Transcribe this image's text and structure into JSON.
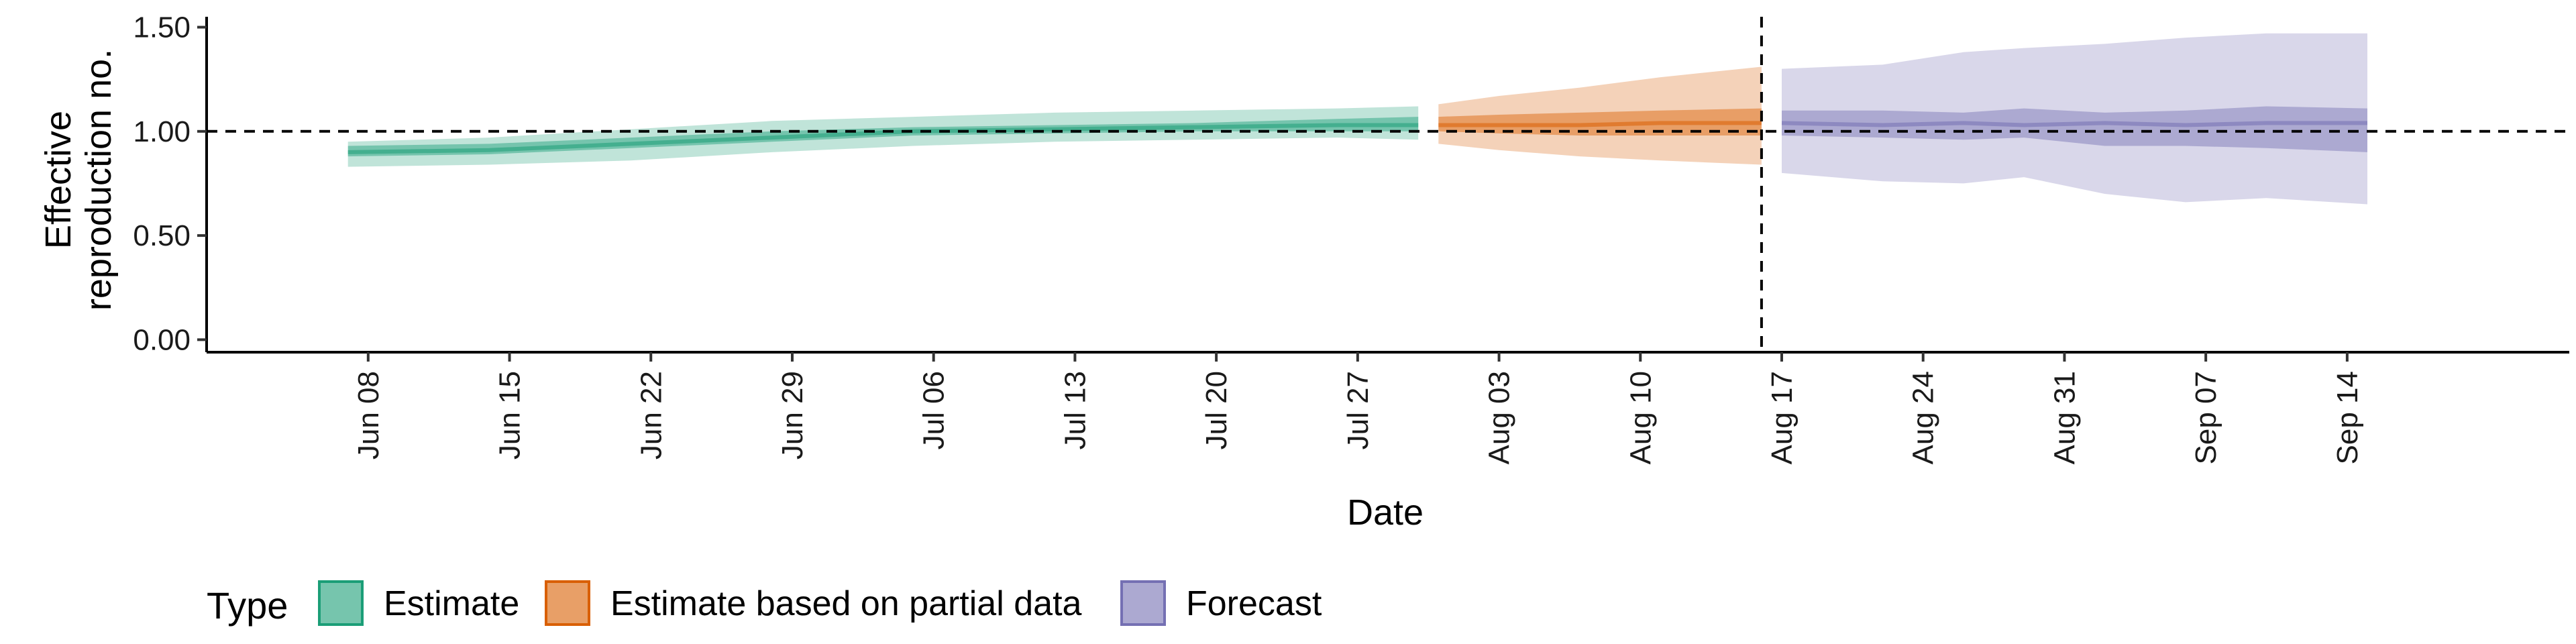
{
  "chart_data": {
    "type": "area",
    "xlabel": "Date",
    "ylabel_lines": [
      "Effective",
      "reproduction no."
    ],
    "x_tick_labels": [
      "Jun 08",
      "Jun 15",
      "Jun 22",
      "Jun 29",
      "Jul 06",
      "Jul 13",
      "Jul 20",
      "Jul 27",
      "Aug 03",
      "Aug 10",
      "Aug 17",
      "Aug 24",
      "Aug 31",
      "Sep 07",
      "Sep 14"
    ],
    "x_ticks": [
      "2020-06-08",
      "2020-06-15",
      "2020-06-22",
      "2020-06-29",
      "2020-07-06",
      "2020-07-13",
      "2020-07-20",
      "2020-07-27",
      "2020-08-03",
      "2020-08-10",
      "2020-08-17",
      "2020-08-24",
      "2020-08-31",
      "2020-09-07",
      "2020-09-14"
    ],
    "x_range": [
      "2020-05-31",
      "2020-09-25"
    ],
    "y_ticks": [
      0.0,
      0.5,
      1.0,
      1.5
    ],
    "y_tick_labels": [
      "0.00",
      "0.50",
      "1.00",
      "1.50"
    ],
    "ylim": [
      -0.06,
      1.55
    ],
    "reference_hline": 1.0,
    "forecast_vline": "2020-08-16",
    "grid": false,
    "legend": {
      "title": "Type",
      "position": "bottom-left",
      "entries": [
        "Estimate",
        "Estimate based on partial data",
        "Forecast"
      ]
    },
    "colors": {
      "Estimate": "#1b9e77",
      "Estimate based on partial data": "#d95f02",
      "Forecast": "#7570b3"
    },
    "series": [
      {
        "name": "Estimate",
        "x": [
          "2020-06-07",
          "2020-06-14",
          "2020-06-21",
          "2020-06-28",
          "2020-07-05",
          "2020-07-12",
          "2020-07-19",
          "2020-07-26",
          "2020-07-30"
        ],
        "median": [
          0.9,
          0.91,
          0.94,
          0.97,
          1.0,
          1.01,
          1.02,
          1.03,
          1.03
        ],
        "lower50": [
          0.88,
          0.89,
          0.92,
          0.95,
          0.98,
          0.99,
          1.0,
          1.0,
          1.0
        ],
        "upper50": [
          0.93,
          0.94,
          0.97,
          1.0,
          1.02,
          1.03,
          1.04,
          1.06,
          1.07
        ],
        "lower90": [
          0.83,
          0.84,
          0.86,
          0.9,
          0.93,
          0.95,
          0.96,
          0.97,
          0.96
        ],
        "upper90": [
          0.95,
          0.97,
          1.01,
          1.05,
          1.07,
          1.09,
          1.1,
          1.11,
          1.12
        ]
      },
      {
        "name": "Estimate based on partial data",
        "x": [
          "2020-07-31",
          "2020-08-03",
          "2020-08-07",
          "2020-08-11",
          "2020-08-16"
        ],
        "median": [
          1.03,
          1.03,
          1.03,
          1.04,
          1.04
        ],
        "lower50": [
          1.0,
          0.99,
          0.98,
          0.98,
          0.98
        ],
        "upper50": [
          1.07,
          1.08,
          1.09,
          1.1,
          1.11
        ],
        "lower90": [
          0.94,
          0.91,
          0.88,
          0.86,
          0.84
        ],
        "upper90": [
          1.13,
          1.17,
          1.21,
          1.26,
          1.31
        ]
      },
      {
        "name": "Forecast",
        "x": [
          "2020-08-17",
          "2020-08-22",
          "2020-08-26",
          "2020-08-29",
          "2020-09-02",
          "2020-09-06",
          "2020-09-10",
          "2020-09-15"
        ],
        "median": [
          1.04,
          1.03,
          1.04,
          1.03,
          1.04,
          1.03,
          1.04,
          1.04
        ],
        "lower50": [
          0.98,
          0.97,
          0.96,
          0.97,
          0.93,
          0.93,
          0.92,
          0.9
        ],
        "upper50": [
          1.1,
          1.1,
          1.09,
          1.11,
          1.09,
          1.1,
          1.12,
          1.11
        ],
        "lower90": [
          0.8,
          0.76,
          0.75,
          0.78,
          0.7,
          0.66,
          0.68,
          0.65
        ],
        "upper90": [
          1.3,
          1.32,
          1.38,
          1.4,
          1.42,
          1.45,
          1.47,
          1.47
        ]
      }
    ]
  }
}
